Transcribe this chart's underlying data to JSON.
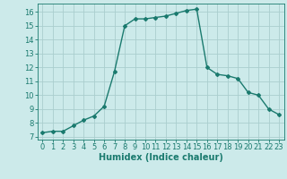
{
  "x": [
    0,
    1,
    2,
    3,
    4,
    5,
    6,
    7,
    8,
    9,
    10,
    11,
    12,
    13,
    14,
    15,
    16,
    17,
    18,
    19,
    20,
    21,
    22,
    23
  ],
  "y": [
    7.3,
    7.4,
    7.4,
    7.8,
    8.2,
    8.5,
    9.2,
    11.7,
    15.0,
    15.5,
    15.5,
    15.6,
    15.7,
    15.9,
    16.1,
    16.2,
    12.0,
    11.5,
    11.4,
    11.2,
    10.2,
    10.0,
    9.0,
    8.6
  ],
  "line_color": "#1a7a6e",
  "bg_color": "#cceaea",
  "grid_color": "#aacece",
  "xlabel": "Humidex (Indice chaleur)",
  "xlim": [
    -0.5,
    23.5
  ],
  "ylim": [
    6.8,
    16.6
  ],
  "yticks": [
    7,
    8,
    9,
    10,
    11,
    12,
    13,
    14,
    15,
    16
  ],
  "xticks": [
    0,
    1,
    2,
    3,
    4,
    5,
    6,
    7,
    8,
    9,
    10,
    11,
    12,
    13,
    14,
    15,
    16,
    17,
    18,
    19,
    20,
    21,
    22,
    23
  ],
  "marker": "D",
  "marker_size": 2.0,
  "linewidth": 1.0,
  "xlabel_fontsize": 7.0,
  "tick_fontsize": 6.0
}
